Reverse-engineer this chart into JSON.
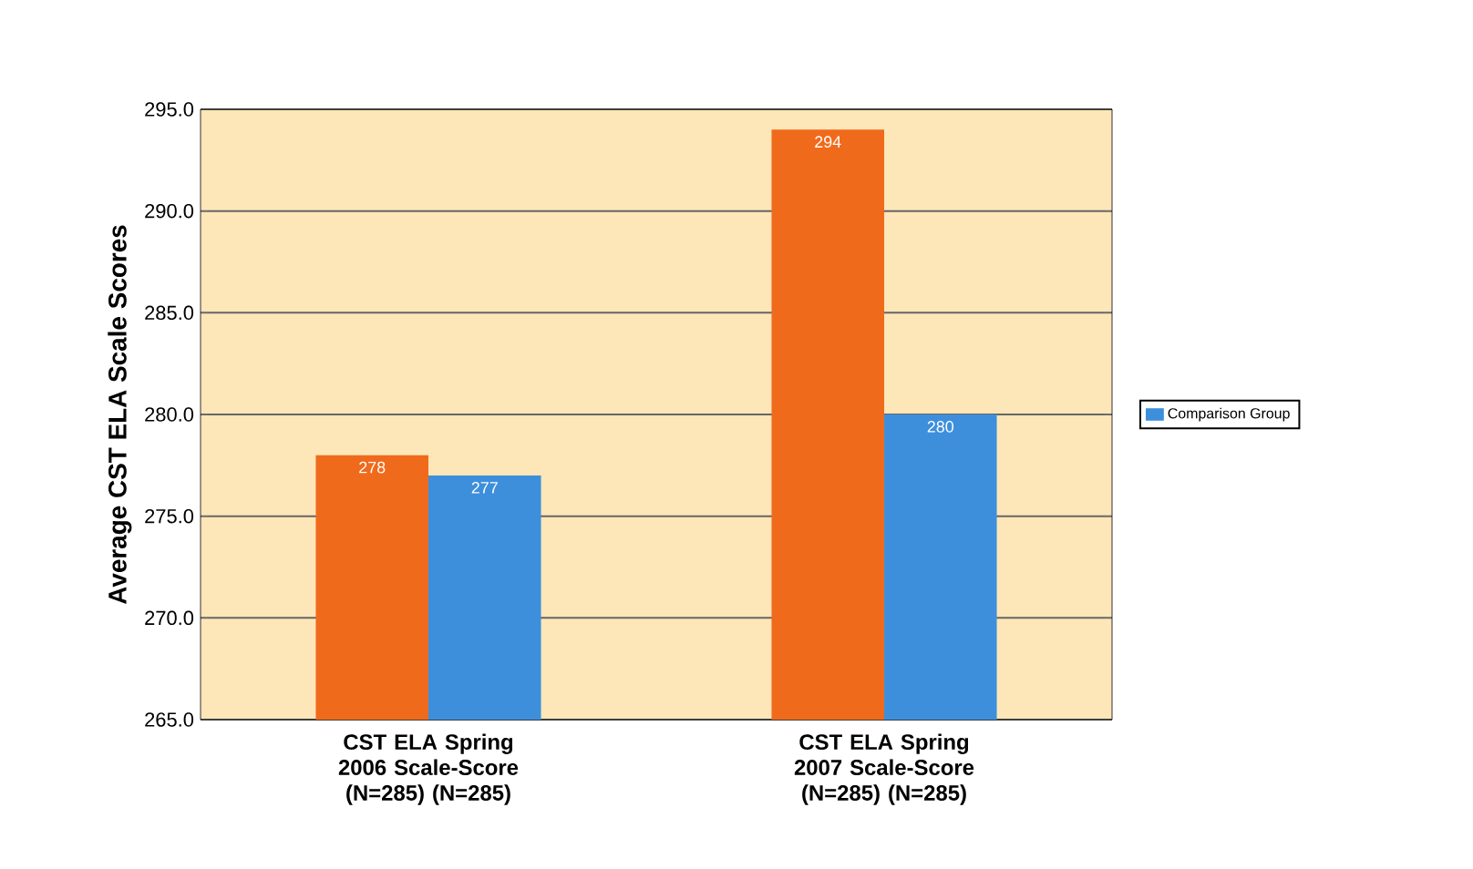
{
  "chart_data": {
    "type": "bar",
    "ylabel": "Average CST ELA Scale Scores",
    "categories": [
      "CST ELA Spring 2006 Scale-Score (N=285)   (N=285)",
      "CST ELA Spring 2007 Scale-Score (N=285)   (N=285)"
    ],
    "series": [
      {
        "color": "#f06a1c",
        "values": [
          278,
          294
        ]
      },
      {
        "name": "Comparison Group",
        "color": "#3d8fdc",
        "values": [
          277,
          280
        ]
      }
    ],
    "ylim": [
      265,
      295
    ],
    "yticks": [
      {
        "value": 265,
        "label": "265.0"
      },
      {
        "value": 270,
        "label": "270.0"
      },
      {
        "value": 275,
        "label": "275.0"
      },
      {
        "value": 280,
        "label": "280.0"
      },
      {
        "value": 285,
        "label": "285.0"
      },
      {
        "value": 290,
        "label": "290.0"
      },
      {
        "value": 295,
        "label": "295.0"
      }
    ],
    "grid": "y",
    "legend": "right",
    "data_labels": true
  }
}
